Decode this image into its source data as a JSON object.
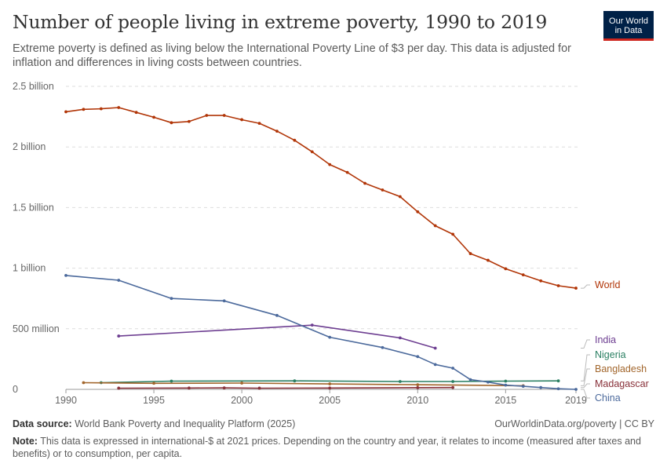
{
  "title": "Number of people living in extreme poverty, 1990 to 2019",
  "subtitle": "Extreme poverty is defined as living below the International Poverty Line of $3 per day. This data is adjusted for inflation and differences in living costs between countries.",
  "logo": {
    "line1": "Our World",
    "line2": "in Data"
  },
  "source_label": "Data source:",
  "source_text": "World Bank Poverty and Inequality Platform (2025)",
  "credit": "OurWorldinData.org/poverty | CC BY",
  "note_label": "Note:",
  "note_text": "This data is expressed in international-$ at 2021 prices. Depending on the country and year, it relates to income (measured after taxes and benefits) or to consumption, per capita.",
  "colors": {
    "World": "#b13507",
    "India": "#6d3e91",
    "Nigeria": "#2a7f62",
    "Bangladesh": "#a2662c",
    "Madagascar": "#883039",
    "China": "#4c6a9c"
  },
  "chart_data": {
    "type": "line",
    "xlim": [
      1990,
      2019
    ],
    "ylim": [
      0,
      2500000000
    ],
    "y_ticks": [
      0,
      500000000,
      1000000000,
      1500000000,
      2000000000,
      2500000000
    ],
    "y_tick_labels": [
      "0",
      "500 million",
      "1 billion",
      "1.5 billion",
      "2 billion",
      "2.5 billion"
    ],
    "x_ticks": [
      1990,
      1995,
      2000,
      2005,
      2010,
      2015,
      2019
    ],
    "x_tick_labels": [
      "1990",
      "1995",
      "2000",
      "2005",
      "2010",
      "2015",
      "2019"
    ],
    "grid": "horizontal dashed",
    "series": [
      {
        "name": "World",
        "x": [
          1990,
          1991,
          1992,
          1993,
          1994,
          1995,
          1996,
          1997,
          1998,
          1999,
          2000,
          2001,
          2002,
          2003,
          2004,
          2005,
          2006,
          2007,
          2008,
          2009,
          2010,
          2011,
          2012,
          2013,
          2014,
          2015,
          2016,
          2017,
          2018,
          2019
        ],
        "y": [
          2290000000,
          2310000000,
          2315000000,
          2325000000,
          2285000000,
          2245000000,
          2200000000,
          2210000000,
          2260000000,
          2260000000,
          2225000000,
          2195000000,
          2130000000,
          2055000000,
          1960000000,
          1855000000,
          1790000000,
          1700000000,
          1645000000,
          1590000000,
          1465000000,
          1350000000,
          1280000000,
          1120000000,
          1065000000,
          995000000,
          945000000,
          895000000,
          855000000,
          835000000
        ]
      },
      {
        "name": "India",
        "x": [
          1993,
          2004,
          2009,
          2011
        ],
        "y": [
          440000000,
          530000000,
          425000000,
          340000000
        ]
      },
      {
        "name": "Nigeria",
        "x": [
          1992,
          1996,
          2003,
          2009,
          2012,
          2015,
          2018
        ],
        "y": [
          55000000,
          68000000,
          70000000,
          65000000,
          65000000,
          68000000,
          70000000
        ]
      },
      {
        "name": "Bangladesh",
        "x": [
          1991,
          1995,
          2000,
          2005,
          2010,
          2016
        ],
        "y": [
          55000000,
          50000000,
          52000000,
          45000000,
          38000000,
          30000000
        ]
      },
      {
        "name": "Madagascar",
        "x": [
          1993,
          1997,
          1999,
          2001,
          2005,
          2010,
          2012
        ],
        "y": [
          10000000,
          11000000,
          12000000,
          10000000,
          11000000,
          14000000,
          15000000
        ]
      },
      {
        "name": "China",
        "x": [
          1990,
          1993,
          1996,
          1999,
          2002,
          2005,
          2008,
          2010,
          2011,
          2012,
          2013,
          2014,
          2015,
          2016,
          2017,
          2018,
          2019
        ],
        "y": [
          940000000,
          900000000,
          750000000,
          730000000,
          610000000,
          430000000,
          345000000,
          270000000,
          205000000,
          175000000,
          80000000,
          60000000,
          35000000,
          25000000,
          15000000,
          5000000,
          0
        ]
      }
    ]
  }
}
